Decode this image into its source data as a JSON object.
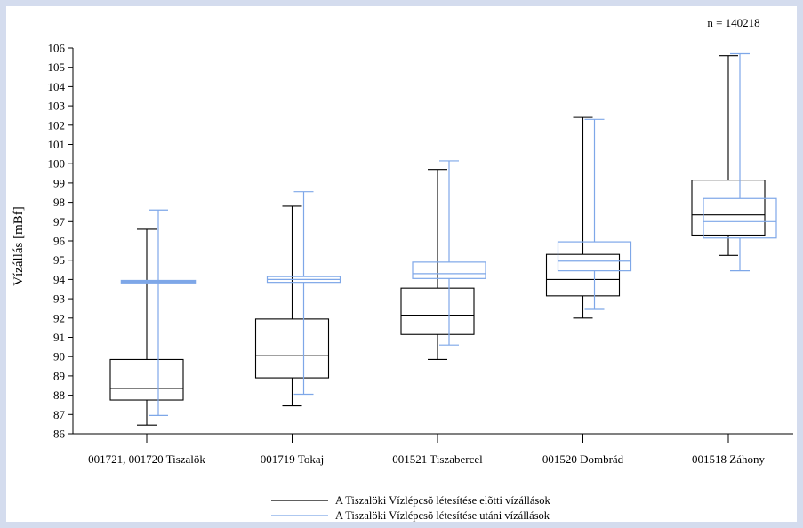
{
  "chart_data": {
    "type": "boxplot",
    "annotation": "n = 140218",
    "ylabel": "Vízállás [mBf]",
    "xlabel": "",
    "ylim": [
      86,
      106
    ],
    "yticks": [
      86,
      87,
      88,
      89,
      90,
      91,
      92,
      93,
      94,
      95,
      96,
      97,
      98,
      99,
      100,
      101,
      102,
      103,
      104,
      105,
      106
    ],
    "grid": false,
    "legend_position": "bottom",
    "colors": {
      "before": "#000000",
      "after": "#7ea7e8"
    },
    "categories": [
      "001721, 001720 Tiszalök",
      "001719 Tokaj",
      "001521 Tiszabercel",
      "001520 Dombrád",
      "001518 Záhony"
    ],
    "series": [
      {
        "name": "A Tiszalöki Vízlépcsõ létesítése elõtti vízállások",
        "color": "#000000",
        "boxes": [
          {
            "min": 86.45,
            "q1": 87.75,
            "median": 88.35,
            "q3": 89.85,
            "max": 96.6
          },
          {
            "min": 87.45,
            "q1": 88.9,
            "median": 90.05,
            "q3": 91.95,
            "max": 97.8
          },
          {
            "min": 89.85,
            "q1": 91.15,
            "median": 92.15,
            "q3": 93.55,
            "max": 99.7
          },
          {
            "min": 92.0,
            "q1": 93.15,
            "median": 94.0,
            "q3": 95.3,
            "max": 102.4
          },
          {
            "min": 95.25,
            "q1": 96.3,
            "median": 97.35,
            "q3": 99.15,
            "max": 105.6
          }
        ]
      },
      {
        "name": "A Tiszalöki Vízlépcsõ létesítése utáni vízállások",
        "color": "#7ea7e8",
        "boxes": [
          {
            "min": 86.95,
            "q1": 93.85,
            "median": 93.88,
            "q3": 93.92,
            "max": 97.6
          },
          {
            "min": 88.05,
            "q1": 93.85,
            "median": 94.0,
            "q3": 94.15,
            "max": 98.55
          },
          {
            "min": 90.6,
            "q1": 94.05,
            "median": 94.3,
            "q3": 94.9,
            "max": 100.15
          },
          {
            "min": 92.45,
            "q1": 94.45,
            "median": 94.95,
            "q3": 95.95,
            "max": 102.3
          },
          {
            "min": 94.45,
            "q1": 96.15,
            "median": 97.0,
            "q3": 98.2,
            "max": 105.7
          }
        ]
      }
    ]
  }
}
